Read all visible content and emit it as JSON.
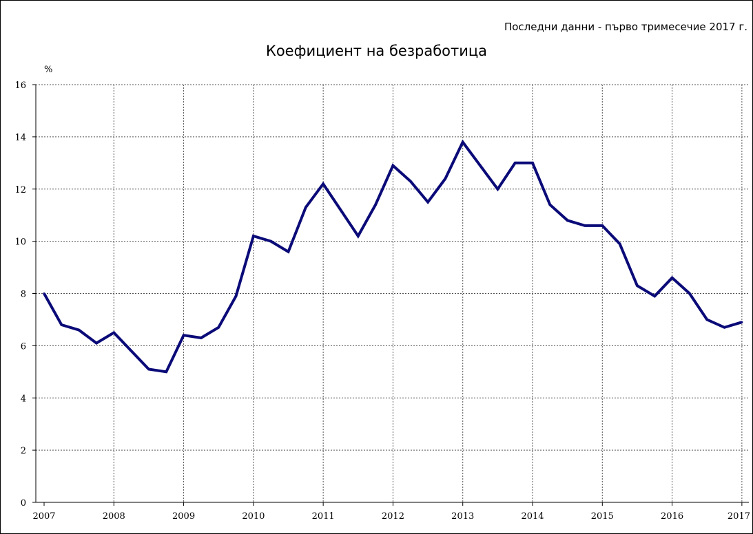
{
  "chart_data": {
    "type": "line",
    "title": "Коефициент на безработица",
    "subtitle": "Последни данни - първо тримесечие 2017 г.",
    "ylabel": "%",
    "xlabel": "",
    "ylim": [
      0,
      16
    ],
    "yticks": [
      0,
      2,
      4,
      6,
      8,
      10,
      12,
      14,
      16
    ],
    "xticks": [
      "2007",
      "2008",
      "2009",
      "2010",
      "2011",
      "2012",
      "2013",
      "2014",
      "2015",
      "2016",
      "2017"
    ],
    "grid": true,
    "series": [
      {
        "color": "#0a0a78",
        "x": [
          2007.0,
          2007.25,
          2007.5,
          2007.75,
          2008.0,
          2008.25,
          2008.5,
          2008.75,
          2009.0,
          2009.25,
          2009.5,
          2009.75,
          2010.0,
          2010.25,
          2010.5,
          2010.75,
          2011.0,
          2011.25,
          2011.5,
          2011.75,
          2012.0,
          2012.25,
          2012.5,
          2012.75,
          2013.0,
          2013.25,
          2013.5,
          2013.75,
          2014.0,
          2014.25,
          2014.5,
          2014.75,
          2015.0,
          2015.25,
          2015.5,
          2015.75,
          2016.0,
          2016.25,
          2016.5,
          2016.75,
          2017.0
        ],
        "values": [
          8.0,
          6.8,
          6.6,
          6.1,
          6.5,
          5.8,
          5.1,
          5.0,
          6.4,
          6.3,
          6.7,
          7.9,
          10.2,
          10.0,
          9.6,
          11.3,
          12.2,
          11.2,
          10.2,
          11.4,
          12.9,
          12.3,
          11.5,
          12.4,
          13.8,
          12.9,
          12.0,
          13.0,
          13.0,
          11.4,
          10.8,
          10.6,
          10.6,
          9.9,
          8.3,
          7.9,
          8.6,
          8.0,
          7.0,
          6.7,
          6.9
        ]
      }
    ]
  }
}
